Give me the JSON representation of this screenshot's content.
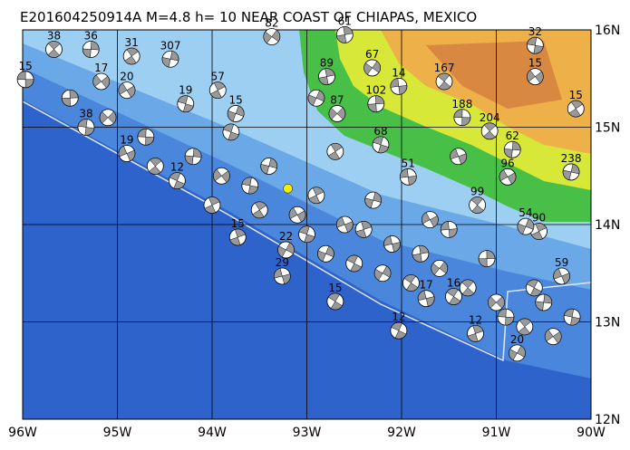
{
  "chart_data": {
    "type": "map",
    "title": "E201604250914A M=4.8 h= 10 NEAR COAST OF CHIAPAS, MEXICO",
    "xlim": [
      -96,
      -90
    ],
    "ylim": [
      12,
      16
    ],
    "xticks": [
      {
        "value": -96,
        "label": "96W"
      },
      {
        "value": -95,
        "label": "95W"
      },
      {
        "value": -94,
        "label": "94W"
      },
      {
        "value": -93,
        "label": "93W"
      },
      {
        "value": -92,
        "label": "92W"
      },
      {
        "value": -91,
        "label": "91W"
      },
      {
        "value": -90,
        "label": "90W"
      }
    ],
    "yticks": [
      {
        "value": 12,
        "label": "12N"
      },
      {
        "value": 13,
        "label": "13N"
      },
      {
        "value": 14,
        "label": "14N"
      },
      {
        "value": 15,
        "label": "15N"
      },
      {
        "value": 16,
        "label": "16N"
      }
    ],
    "grid": true,
    "main_event": {
      "lon": -93.2,
      "lat": 14.37,
      "color": "#f5f000"
    },
    "events": {
      "lon": [
        -95.97,
        -95.67,
        -95.28,
        -95.17,
        -95.33,
        -94.85,
        -94.44,
        -94.9,
        -94.28,
        -93.94,
        -93.75,
        -94.9,
        -94.37,
        -93.73,
        -93.22,
        -93.26,
        -92.7,
        -92.79,
        -92.31,
        -92.03,
        -91.55,
        -92.27,
        -92.68,
        -91.36,
        -91.07,
        -90.83,
        -90.59,
        -90.59,
        -90.16,
        -90.21,
        -90.88,
        -92.22,
        -90.55,
        -90.69,
        -90.31,
        -92.03,
        -91.22,
        -90.78,
        -91.74,
        -91.45,
        -92.6,
        -93.37,
        -91.93,
        -91.2,
        -95.5,
        -95.1,
        -94.7,
        -94.6,
        -94.2,
        -93.9,
        -93.6,
        -93.5,
        -93.4,
        -93.1,
        -93.0,
        -92.9,
        -92.8,
        -92.6,
        -92.5,
        -92.4,
        -92.2,
        -92.1,
        -91.9,
        -91.8,
        -91.6,
        -91.5,
        -91.3,
        -91.1,
        -91.0,
        -90.9,
        -90.7,
        -90.5,
        -90.4,
        -90.2,
        -92.7,
        -92.3,
        -91.7,
        -93.8,
        -94.0,
        -92.9,
        -91.4,
        -90.6
      ],
      "lat": [
        15.49,
        15.8,
        15.8,
        15.47,
        15.0,
        15.73,
        15.7,
        15.38,
        15.24,
        15.38,
        15.14,
        14.73,
        14.45,
        13.87,
        13.74,
        13.47,
        13.21,
        15.52,
        15.61,
        15.42,
        15.47,
        15.24,
        15.14,
        15.1,
        14.96,
        14.77,
        15.52,
        15.84,
        15.19,
        14.54,
        14.49,
        14.82,
        13.93,
        13.98,
        13.47,
        12.91,
        12.88,
        12.68,
        13.24,
        13.26,
        15.95,
        15.93,
        14.49,
        14.2,
        15.3,
        15.1,
        14.9,
        14.6,
        14.7,
        14.5,
        14.4,
        14.15,
        14.6,
        14.1,
        13.9,
        14.3,
        13.7,
        14.0,
        13.6,
        13.95,
        13.5,
        13.8,
        13.4,
        13.7,
        13.55,
        13.95,
        13.35,
        13.65,
        13.2,
        13.05,
        12.95,
        13.2,
        12.85,
        13.05,
        14.75,
        14.25,
        14.05,
        14.95,
        14.2,
        15.3,
        14.7,
        13.35
      ],
      "depth": [
        15,
        38,
        36,
        17,
        38,
        31,
        307,
        20,
        19,
        57,
        15,
        19,
        12,
        15,
        22,
        29,
        15,
        89,
        67,
        14,
        167,
        102,
        87,
        188,
        204,
        62,
        15,
        32,
        15,
        238,
        96,
        68,
        90,
        54,
        59,
        12,
        12,
        20,
        17,
        16,
        61,
        82,
        51,
        99,
        null,
        null,
        null,
        null,
        null,
        null,
        null,
        null,
        null,
        null,
        null,
        null,
        null,
        null,
        null,
        null,
        null,
        null,
        null,
        null,
        null,
        null,
        null,
        null,
        null,
        null,
        null,
        null,
        null,
        null,
        null,
        null,
        null,
        null,
        null,
        null,
        null,
        null
      ]
    }
  }
}
